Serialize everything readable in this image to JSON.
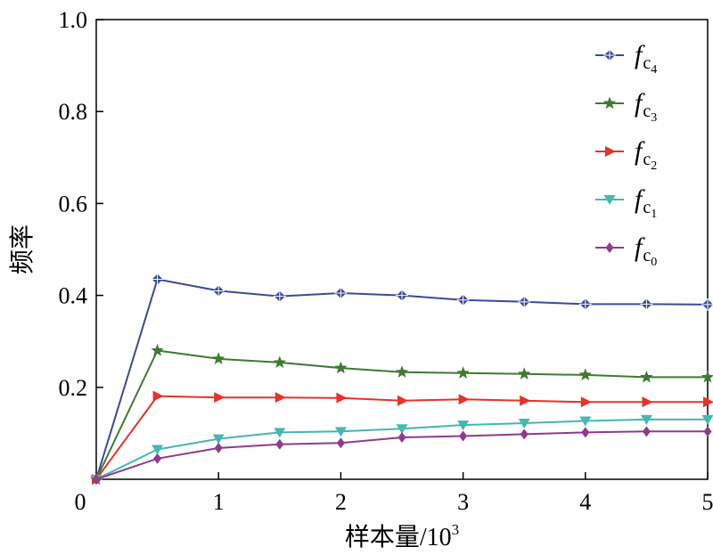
{
  "chart_data": {
    "type": "line",
    "xlabel": "样本量/10",
    "xlabel_sup": "3",
    "ylabel": "频率",
    "xlim": [
      0,
      5
    ],
    "ylim": [
      0,
      1.0
    ],
    "x_ticks": [
      0,
      1,
      2,
      3,
      4,
      5
    ],
    "x_tick_labels": [
      "0",
      "1",
      "2",
      "3",
      "4",
      "5"
    ],
    "y_ticks": [
      0.2,
      0.4,
      0.6,
      0.8,
      1.0
    ],
    "y_tick_labels": [
      "0.2",
      "0.4",
      "0.6",
      "0.8",
      "1.0"
    ],
    "grid": false,
    "legend_position": "top-right",
    "x": [
      0,
      0.5,
      1,
      1.5,
      2,
      2.5,
      3,
      3.5,
      4,
      4.5,
      5
    ],
    "series": [
      {
        "name": "f",
        "sub": "c",
        "subsub": "4",
        "color": "#3b4a96",
        "marker": "plus-diamond",
        "values": [
          0.0,
          0.435,
          0.41,
          0.398,
          0.405,
          0.4,
          0.39,
          0.386,
          0.381,
          0.381,
          0.38
        ]
      },
      {
        "name": "f",
        "sub": "c",
        "subsub": "3",
        "color": "#3f7a32",
        "marker": "star",
        "values": [
          0.0,
          0.28,
          0.262,
          0.254,
          0.242,
          0.233,
          0.231,
          0.229,
          0.227,
          0.222,
          0.222
        ]
      },
      {
        "name": "f",
        "sub": "c",
        "subsub": "2",
        "color": "#e8322a",
        "marker": "triangle-right",
        "values": [
          0.0,
          0.181,
          0.178,
          0.178,
          0.177,
          0.171,
          0.174,
          0.171,
          0.168,
          0.168,
          0.168
        ]
      },
      {
        "name": "f",
        "sub": "c",
        "subsub": "1",
        "color": "#45b8b0",
        "marker": "triangle-down",
        "values": [
          0.0,
          0.065,
          0.088,
          0.102,
          0.104,
          0.11,
          0.118,
          0.122,
          0.127,
          0.13,
          0.13
        ]
      },
      {
        "name": "f",
        "sub": "c",
        "subsub": "0",
        "color": "#8e3b8e",
        "marker": "diamond",
        "values": [
          0.0,
          0.045,
          0.068,
          0.076,
          0.079,
          0.091,
          0.094,
          0.098,
          0.102,
          0.104,
          0.104
        ]
      }
    ]
  }
}
